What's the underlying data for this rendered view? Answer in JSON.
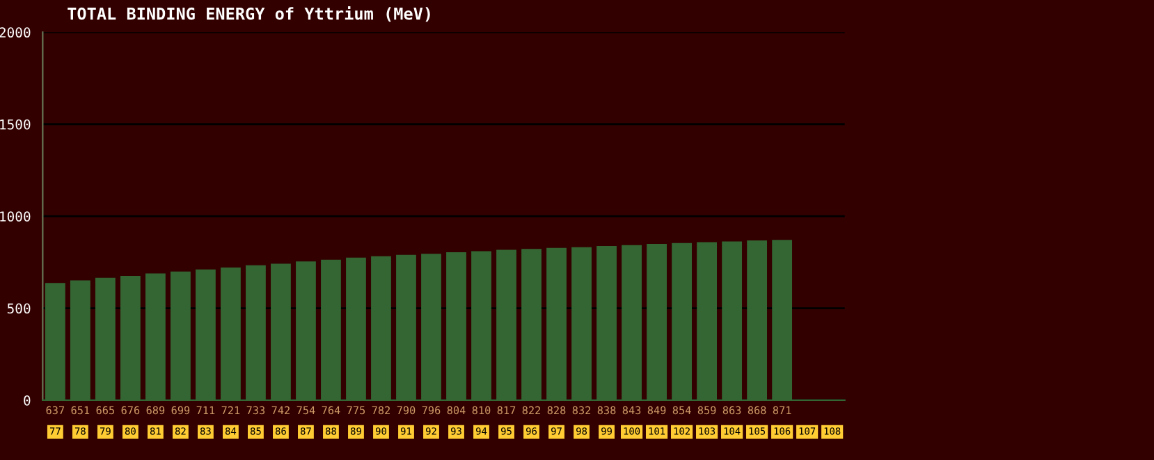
{
  "chart_data": {
    "type": "bar",
    "title": "TOTAL BINDING ENERGY of Yttrium (MeV)",
    "categories": [
      "77",
      "78",
      "79",
      "80",
      "81",
      "82",
      "83",
      "84",
      "85",
      "86",
      "87",
      "88",
      "89",
      "90",
      "91",
      "92",
      "93",
      "94",
      "95",
      "96",
      "97",
      "98",
      "99",
      "100",
      "101",
      "102",
      "103",
      "104",
      "105",
      "106",
      "107",
      "108"
    ],
    "values": [
      637,
      651,
      665,
      676,
      689,
      699,
      711,
      721,
      733,
      742,
      754,
      764,
      775,
      782,
      790,
      796,
      804,
      810,
      817,
      822,
      828,
      832,
      838,
      843,
      849,
      854,
      859,
      863,
      868,
      871,
      null,
      null
    ],
    "color": "#336633",
    "data_labels": true,
    "ylim": [
      0,
      2000
    ],
    "yticks": [
      0,
      500,
      1000,
      1500,
      2000
    ],
    "grid": "y"
  }
}
